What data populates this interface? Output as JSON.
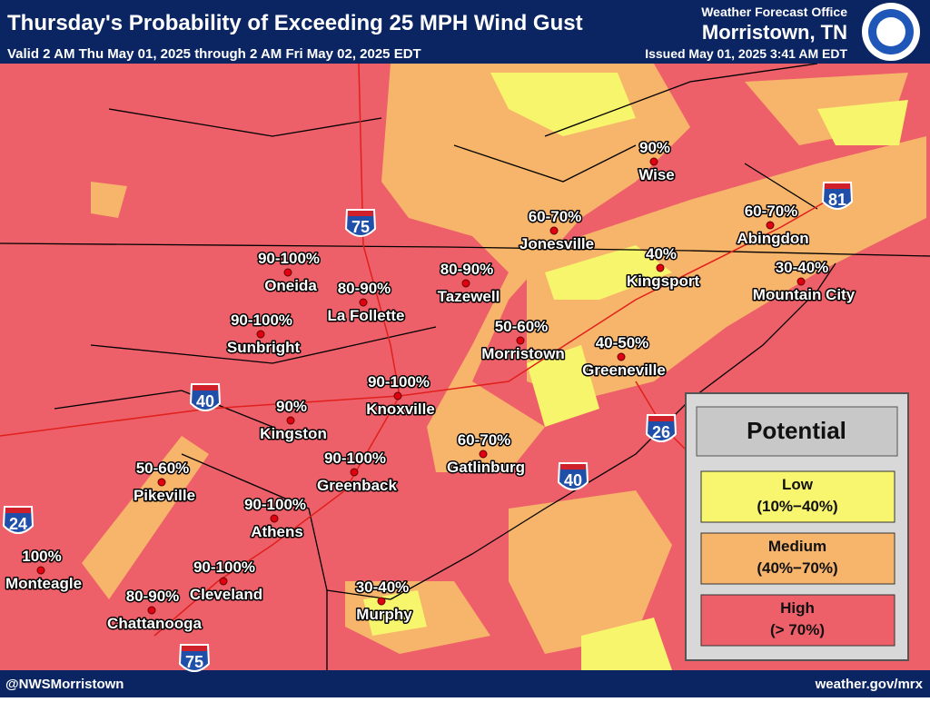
{
  "header": {
    "title": "Thursday's Probability of Exceeding 25 MPH Wind Gust",
    "valid": "Valid 2 AM Thu May 01, 2025 through 2 AM Fri May 02, 2025 EDT",
    "office_line1": "Weather Forecast Office",
    "office_line2": "Morristown, TN",
    "issued": "Issued May 01, 2025 3:41 AM EDT"
  },
  "cities": [
    {
      "name": "Wise",
      "probability": "90%"
    },
    {
      "name": "Jonesville",
      "probability": "60-70%"
    },
    {
      "name": "Abingdon",
      "probability": "60-70%"
    },
    {
      "name": "Kingsport",
      "probability": "40%"
    },
    {
      "name": "Mountain City",
      "probability": "30-40%"
    },
    {
      "name": "Tazewell",
      "probability": "80-90%"
    },
    {
      "name": "Oneida",
      "probability": "90-100%"
    },
    {
      "name": "La Follette",
      "probability": "80-90%"
    },
    {
      "name": "Sunbright",
      "probability": "90-100%"
    },
    {
      "name": "Morristown",
      "probability": "50-60%"
    },
    {
      "name": "Greeneville",
      "probability": "40-50%"
    },
    {
      "name": "Knoxville",
      "probability": "90-100%"
    },
    {
      "name": "Kingston",
      "probability": "90%"
    },
    {
      "name": "Gatlinburg",
      "probability": "60-70%"
    },
    {
      "name": "Greenback",
      "probability": "90-100%"
    },
    {
      "name": "Pikeville",
      "probability": "50-60%"
    },
    {
      "name": "Athens",
      "probability": "90-100%"
    },
    {
      "name": "Monteagle",
      "probability": "100%"
    },
    {
      "name": "Cleveland",
      "probability": "90-100%"
    },
    {
      "name": "Chattanooga",
      "probability": "80-90%"
    },
    {
      "name": "Murphy",
      "probability": "30-40%"
    }
  ],
  "interstates": [
    "75",
    "40",
    "81",
    "26",
    "40",
    "24",
    "75"
  ],
  "legend": {
    "title": "Potential",
    "levels": [
      {
        "name": "Low",
        "range": "(10%−40%)"
      },
      {
        "name": "Medium",
        "range": "(40%−70%)"
      },
      {
        "name": "High",
        "range": "(> 70%)"
      }
    ]
  },
  "footer": {
    "left": "@NWSMorristown",
    "right": "weather.gov/mrx"
  }
}
